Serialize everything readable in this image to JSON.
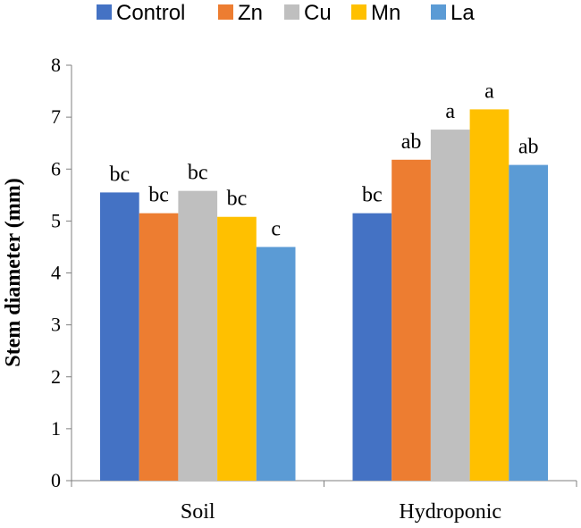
{
  "chart_data": {
    "type": "bar",
    "title": "",
    "xlabel": "",
    "ylabel": "Stem diameter (mm)",
    "ylim": [
      0,
      8
    ],
    "yticks": [
      0,
      1,
      2,
      3,
      4,
      5,
      6,
      7,
      8
    ],
    "grid": false,
    "legend_position": "top",
    "categories": [
      "Soil",
      "Hydroponic"
    ],
    "series": [
      {
        "name": "Control",
        "color": "#4472C4",
        "values": [
          5.55,
          5.15
        ],
        "labels": [
          "bc",
          "bc"
        ]
      },
      {
        "name": "Zn",
        "color": "#ED7D31",
        "values": [
          5.15,
          6.18
        ],
        "labels": [
          "bc",
          "ab"
        ]
      },
      {
        "name": "Cu",
        "color": "#BFBFBF",
        "values": [
          5.58,
          6.76
        ],
        "labels": [
          "bc",
          "a"
        ]
      },
      {
        "name": "Mn",
        "color": "#FFC000",
        "values": [
          5.08,
          7.15
        ],
        "labels": [
          "bc",
          "a"
        ]
      },
      {
        "name": "La",
        "color": "#5B9BD5",
        "values": [
          4.5,
          6.08
        ],
        "labels": [
          "c",
          "ab"
        ]
      }
    ]
  }
}
